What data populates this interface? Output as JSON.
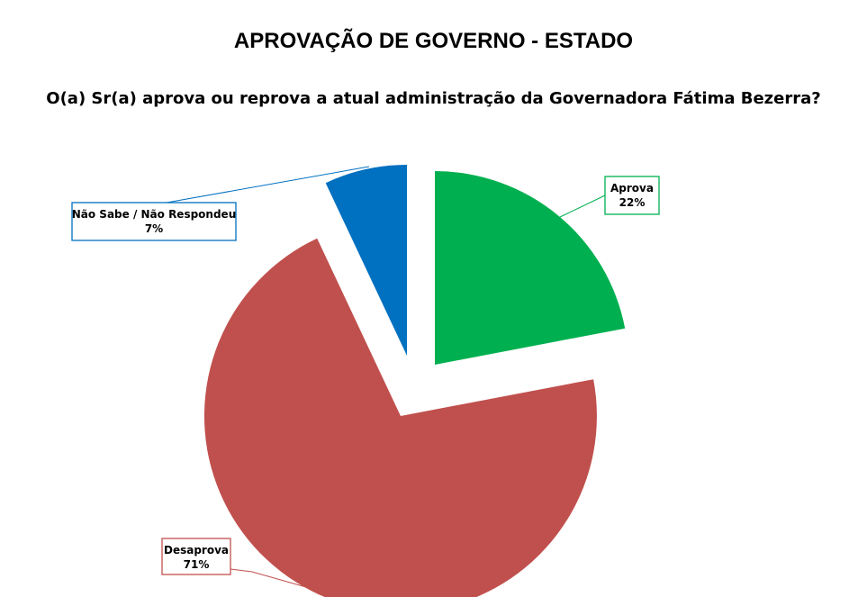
{
  "page": {
    "title": "APROVAÇÃO DE GOVERNO - ESTADO",
    "question": "O(a) Sr(a) aprova ou reprova a atual administração da Governadora Fátima Bezerra?"
  },
  "chart_data": {
    "type": "pie",
    "title": "APROVAÇÃO DE GOVERNO - ESTADO",
    "subtitle": "O(a) Sr(a) aprova ou reprova a atual administração da Governadora Fátima Bezerra?",
    "slices": [
      {
        "label": "Aprova",
        "value": 22,
        "value_label": "22%",
        "color": "#00B050"
      },
      {
        "label": "Desaprova",
        "value": 71,
        "value_label": "71%",
        "color": "#C0504D"
      },
      {
        "label": "Não Sabe / Não Respondeu",
        "value": 7,
        "value_label": "7%",
        "color": "#0070C0"
      }
    ],
    "exploded": true,
    "legend": "none",
    "data_labels": "callouts"
  }
}
